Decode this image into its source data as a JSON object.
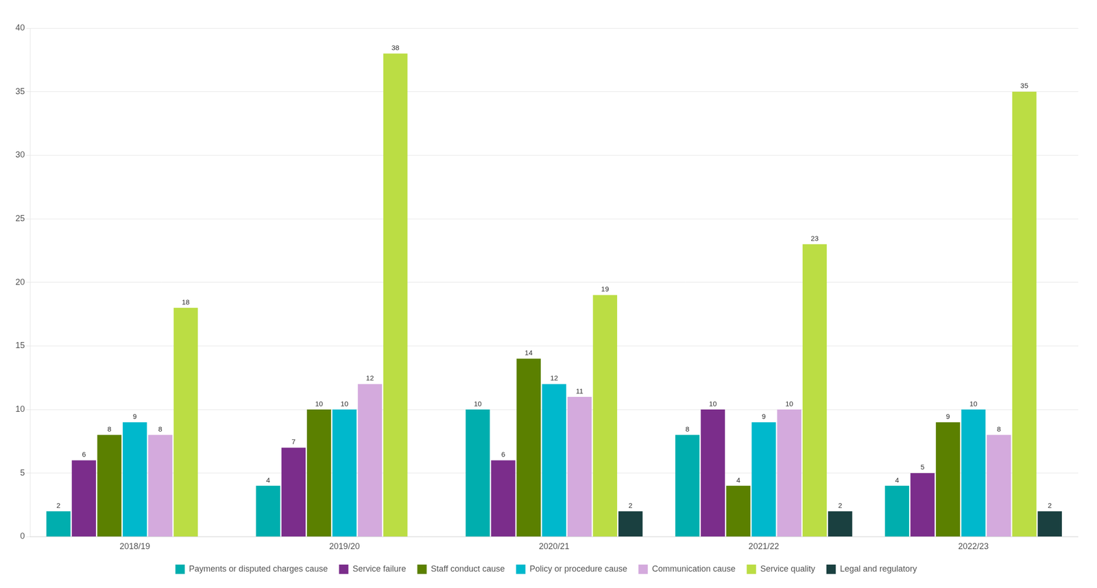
{
  "chart_data": {
    "type": "bar",
    "categories": [
      "2018/19",
      "2019/20",
      "2020/21",
      "2021/22",
      "2022/23"
    ],
    "series": [
      {
        "name": "Payments or disputed charges cause",
        "color": "#00AEAE",
        "values": [
          2,
          4,
          10,
          8,
          4
        ]
      },
      {
        "name": "Service failure",
        "color": "#7B2D8B",
        "values": [
          6,
          7,
          6,
          10,
          5
        ]
      },
      {
        "name": "Staff conduct cause",
        "color": "#5B8000",
        "values": [
          8,
          10,
          14,
          4,
          9
        ]
      },
      {
        "name": "Policy or procedure cause",
        "color": "#00B8CC",
        "values": [
          9,
          10,
          12,
          9,
          10
        ]
      },
      {
        "name": "Communication cause",
        "color": "#D4AADD",
        "values": [
          8,
          12,
          11,
          10,
          8
        ]
      },
      {
        "name": "Service quality",
        "color": "#BBDD44",
        "values": [
          18,
          38,
          19,
          23,
          35
        ]
      },
      {
        "name": "Legal and regulatory",
        "color": "#1A4040",
        "values": [
          0,
          0,
          2,
          2,
          2
        ]
      }
    ],
    "ylim": [
      0,
      40
    ],
    "yticks": [
      0,
      5,
      10,
      15,
      20,
      25,
      30,
      35,
      40
    ],
    "grid": true,
    "legend": "bottom",
    "data_labels": true
  }
}
